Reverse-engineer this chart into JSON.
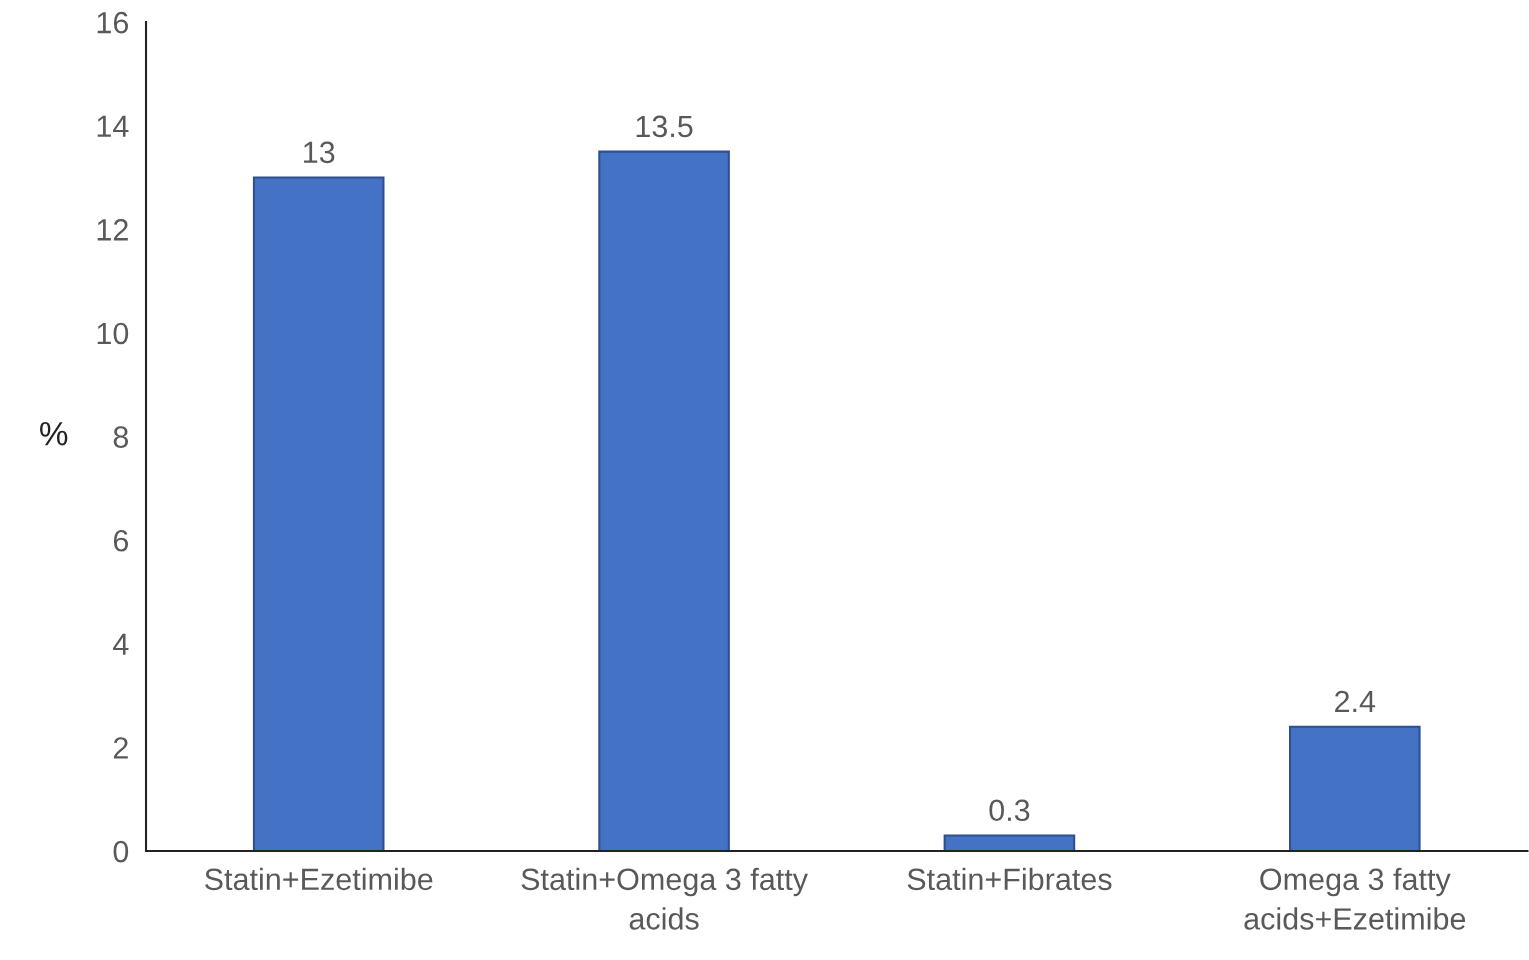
{
  "chart_data": {
    "type": "bar",
    "ylabel": "%",
    "categories": [
      "Statin+Ezetimibe",
      "Statin+Omega 3 fatty\nacids",
      "Statin+Fibrates",
      "Omega 3 fatty\nacids+Ezetimibe"
    ],
    "values": [
      13,
      13.5,
      0.3,
      2.4
    ],
    "color": "#4472c4",
    "ylim": [
      0,
      16
    ],
    "yticks": [
      0,
      2,
      4,
      6,
      8,
      10,
      12,
      14,
      16
    ],
    "grid": false,
    "data_labels": true
  }
}
